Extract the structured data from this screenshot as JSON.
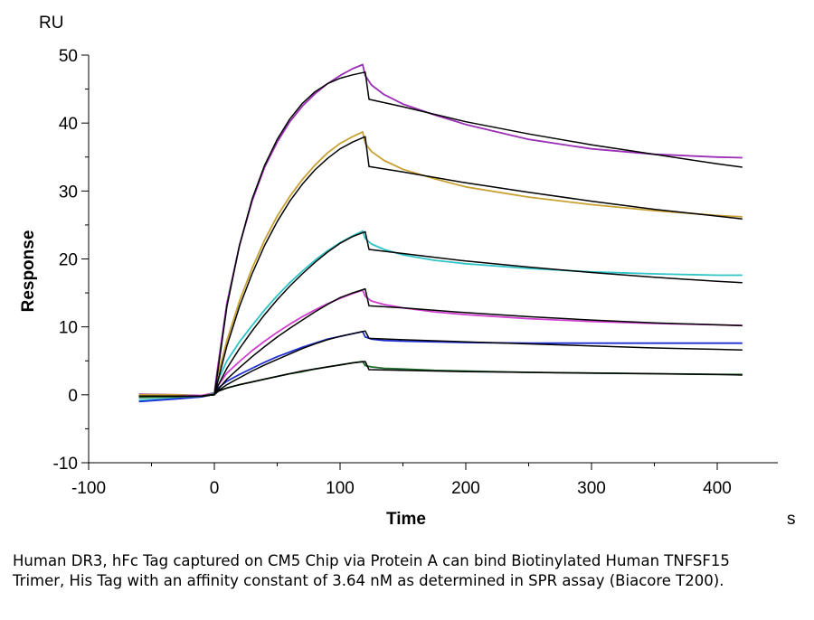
{
  "chart_data": {
    "type": "line",
    "title": "",
    "xlabel": "Time",
    "ylabel": "Response",
    "y_unit": "RU",
    "x_unit": "s",
    "xlim": [
      -100,
      450
    ],
    "ylim": [
      -10,
      50
    ],
    "x_ticks": [
      -100,
      0,
      100,
      200,
      300,
      400
    ],
    "y_ticks": [
      -10,
      0,
      10,
      20,
      30,
      40,
      50
    ],
    "grid": false,
    "legend": "none",
    "series": [
      {
        "color": "#9B2FB5",
        "x": [
          -60,
          -30,
          -10,
          0,
          3,
          10,
          20,
          30,
          40,
          50,
          60,
          70,
          80,
          90,
          100,
          110,
          118,
          120,
          125,
          135,
          150,
          175,
          200,
          250,
          300,
          350,
          400,
          420
        ],
        "values": [
          0.1,
          0.0,
          -0.1,
          0.3,
          4.5,
          13.5,
          22.0,
          28.5,
          33.5,
          37.2,
          40.2,
          42.5,
          44.3,
          45.8,
          47.0,
          48.0,
          48.6,
          47.0,
          45.6,
          44.2,
          42.8,
          41.2,
          39.8,
          37.6,
          36.2,
          35.4,
          35.0,
          34.9
        ]
      },
      {
        "color": "#C9A032",
        "x": [
          -60,
          -30,
          -10,
          0,
          3,
          10,
          20,
          30,
          40,
          50,
          60,
          70,
          80,
          90,
          100,
          110,
          118,
          120,
          125,
          135,
          150,
          175,
          200,
          250,
          300,
          350,
          400,
          420
        ],
        "values": [
          0.0,
          0.0,
          -0.2,
          0.2,
          3.0,
          8.0,
          13.8,
          18.6,
          22.8,
          26.3,
          29.2,
          31.7,
          33.8,
          35.6,
          37.0,
          38.0,
          38.7,
          37.0,
          35.8,
          34.5,
          33.2,
          31.8,
          30.6,
          29.1,
          28.0,
          27.1,
          26.4,
          26.2
        ]
      },
      {
        "color": "#2EC4C8",
        "x": [
          -60,
          -30,
          -10,
          0,
          3,
          10,
          20,
          30,
          40,
          50,
          60,
          70,
          80,
          90,
          100,
          110,
          118,
          120,
          125,
          135,
          150,
          175,
          200,
          250,
          300,
          350,
          400,
          420
        ],
        "values": [
          -0.8,
          -0.5,
          -0.3,
          0.2,
          2.2,
          5.0,
          7.8,
          10.2,
          12.5,
          14.6,
          16.5,
          18.2,
          19.8,
          21.2,
          22.4,
          23.4,
          24.1,
          23.0,
          22.2,
          21.4,
          20.6,
          19.8,
          19.3,
          18.6,
          18.1,
          17.8,
          17.6,
          17.6
        ]
      },
      {
        "color": "#D23FD0",
        "x": [
          -60,
          -30,
          -10,
          0,
          3,
          10,
          20,
          30,
          40,
          50,
          60,
          70,
          80,
          90,
          100,
          110,
          118,
          120,
          125,
          135,
          150,
          175,
          200,
          250,
          300,
          350,
          400,
          420
        ],
        "values": [
          -0.3,
          -0.2,
          -0.1,
          0.1,
          1.4,
          3.2,
          4.9,
          6.5,
          7.9,
          9.2,
          10.4,
          11.5,
          12.5,
          13.4,
          14.2,
          14.9,
          15.4,
          14.5,
          13.8,
          13.3,
          12.8,
          12.2,
          11.8,
          11.2,
          10.8,
          10.5,
          10.3,
          10.2
        ]
      },
      {
        "color": "#1F2FD6",
        "x": [
          -60,
          -30,
          -10,
          0,
          3,
          10,
          20,
          30,
          40,
          50,
          60,
          70,
          80,
          90,
          100,
          110,
          118,
          120,
          125,
          135,
          150,
          175,
          200,
          250,
          300,
          350,
          400,
          420
        ],
        "values": [
          -1.0,
          -0.6,
          -0.3,
          0.1,
          1.0,
          2.0,
          3.0,
          3.9,
          4.8,
          5.6,
          6.3,
          7.0,
          7.6,
          8.2,
          8.6,
          9.0,
          9.3,
          8.5,
          8.2,
          8.0,
          7.9,
          7.8,
          7.7,
          7.6,
          7.6,
          7.6,
          7.6,
          7.6
        ]
      },
      {
        "color": "#1E6B2A",
        "x": [
          -60,
          -30,
          -10,
          0,
          3,
          10,
          20,
          30,
          40,
          50,
          60,
          70,
          80,
          90,
          100,
          110,
          118,
          120,
          125,
          135,
          150,
          175,
          200,
          250,
          300,
          350,
          400,
          420
        ],
        "values": [
          -0.4,
          -0.3,
          -0.2,
          0.1,
          0.6,
          1.0,
          1.5,
          1.9,
          2.3,
          2.7,
          3.1,
          3.4,
          3.8,
          4.1,
          4.4,
          4.7,
          4.9,
          4.3,
          4.1,
          3.9,
          3.8,
          3.6,
          3.5,
          3.3,
          3.2,
          3.1,
          3.0,
          3.0
        ]
      },
      {
        "color": "#000000",
        "x": [
          -60,
          -30,
          -10,
          0,
          3,
          10,
          20,
          30,
          40,
          50,
          60,
          70,
          80,
          90,
          100,
          110,
          120,
          123,
          150,
          200,
          250,
          300,
          350,
          400,
          420
        ],
        "values": [
          -0.2,
          -0.2,
          -0.2,
          0.0,
          3.8,
          13.0,
          22.0,
          28.8,
          33.8,
          37.6,
          40.6,
          42.9,
          44.6,
          45.8,
          46.6,
          47.1,
          47.5,
          43.5,
          42.4,
          40.2,
          38.4,
          36.8,
          35.4,
          34.0,
          33.5
        ]
      },
      {
        "color": "#000000",
        "x": [
          -60,
          -30,
          -10,
          0,
          3,
          10,
          20,
          30,
          40,
          50,
          60,
          70,
          80,
          90,
          100,
          110,
          120,
          123,
          150,
          200,
          250,
          300,
          350,
          400,
          420
        ],
        "values": [
          -0.2,
          -0.2,
          -0.2,
          0.0,
          2.2,
          7.2,
          13.0,
          17.8,
          22.0,
          25.5,
          28.5,
          31.0,
          33.1,
          34.8,
          36.2,
          37.2,
          38.0,
          33.6,
          32.8,
          31.2,
          29.8,
          28.5,
          27.3,
          26.3,
          25.9
        ]
      },
      {
        "color": "#000000",
        "x": [
          -60,
          -30,
          -10,
          0,
          3,
          10,
          20,
          30,
          40,
          50,
          60,
          70,
          80,
          90,
          100,
          110,
          120,
          123,
          150,
          200,
          250,
          300,
          350,
          400,
          420
        ],
        "values": [
          -0.2,
          -0.2,
          -0.2,
          0.0,
          1.4,
          3.9,
          6.8,
          9.4,
          11.8,
          14.0,
          16.0,
          17.8,
          19.5,
          21.0,
          22.3,
          23.3,
          24.0,
          21.4,
          20.8,
          19.7,
          18.8,
          18.0,
          17.3,
          16.7,
          16.5
        ]
      },
      {
        "color": "#000000",
        "x": [
          -60,
          -30,
          -10,
          0,
          3,
          10,
          20,
          30,
          40,
          50,
          60,
          70,
          80,
          90,
          100,
          110,
          120,
          123,
          150,
          200,
          250,
          300,
          350,
          400,
          420
        ],
        "values": [
          -0.2,
          -0.2,
          -0.2,
          0.0,
          0.8,
          2.3,
          4.0,
          5.6,
          7.1,
          8.5,
          9.8,
          11.0,
          12.2,
          13.3,
          14.3,
          15.0,
          15.6,
          13.1,
          12.8,
          12.1,
          11.5,
          11.0,
          10.6,
          10.3,
          10.2
        ]
      },
      {
        "color": "#000000",
        "x": [
          -60,
          -30,
          -10,
          0,
          3,
          10,
          20,
          30,
          40,
          50,
          60,
          70,
          80,
          90,
          100,
          110,
          120,
          123,
          150,
          200,
          250,
          300,
          350,
          400,
          420
        ],
        "values": [
          -0.2,
          -0.2,
          -0.2,
          0.0,
          0.6,
          1.5,
          2.5,
          3.5,
          4.4,
          5.2,
          6.0,
          6.8,
          7.5,
          8.1,
          8.6,
          9.0,
          9.4,
          8.3,
          8.1,
          7.8,
          7.5,
          7.2,
          6.9,
          6.7,
          6.6
        ]
      },
      {
        "color": "#000000",
        "x": [
          -60,
          -30,
          -10,
          0,
          3,
          10,
          20,
          30,
          40,
          50,
          60,
          70,
          80,
          90,
          100,
          110,
          120,
          123,
          150,
          200,
          250,
          300,
          350,
          400,
          420
        ],
        "values": [
          -0.2,
          -0.2,
          -0.2,
          0.0,
          0.5,
          1.0,
          1.5,
          1.9,
          2.3,
          2.7,
          3.1,
          3.5,
          3.8,
          4.1,
          4.4,
          4.7,
          4.9,
          3.7,
          3.6,
          3.4,
          3.3,
          3.2,
          3.1,
          3.0,
          2.9
        ]
      }
    ]
  },
  "caption": "Human DR3, hFc Tag captured on CM5 Chip via Protein A can bind Biotinylated Human TNFSF15 Trimer, His Tag with an affinity constant of 3.64 nM as determined in SPR assay (Biacore T200)."
}
